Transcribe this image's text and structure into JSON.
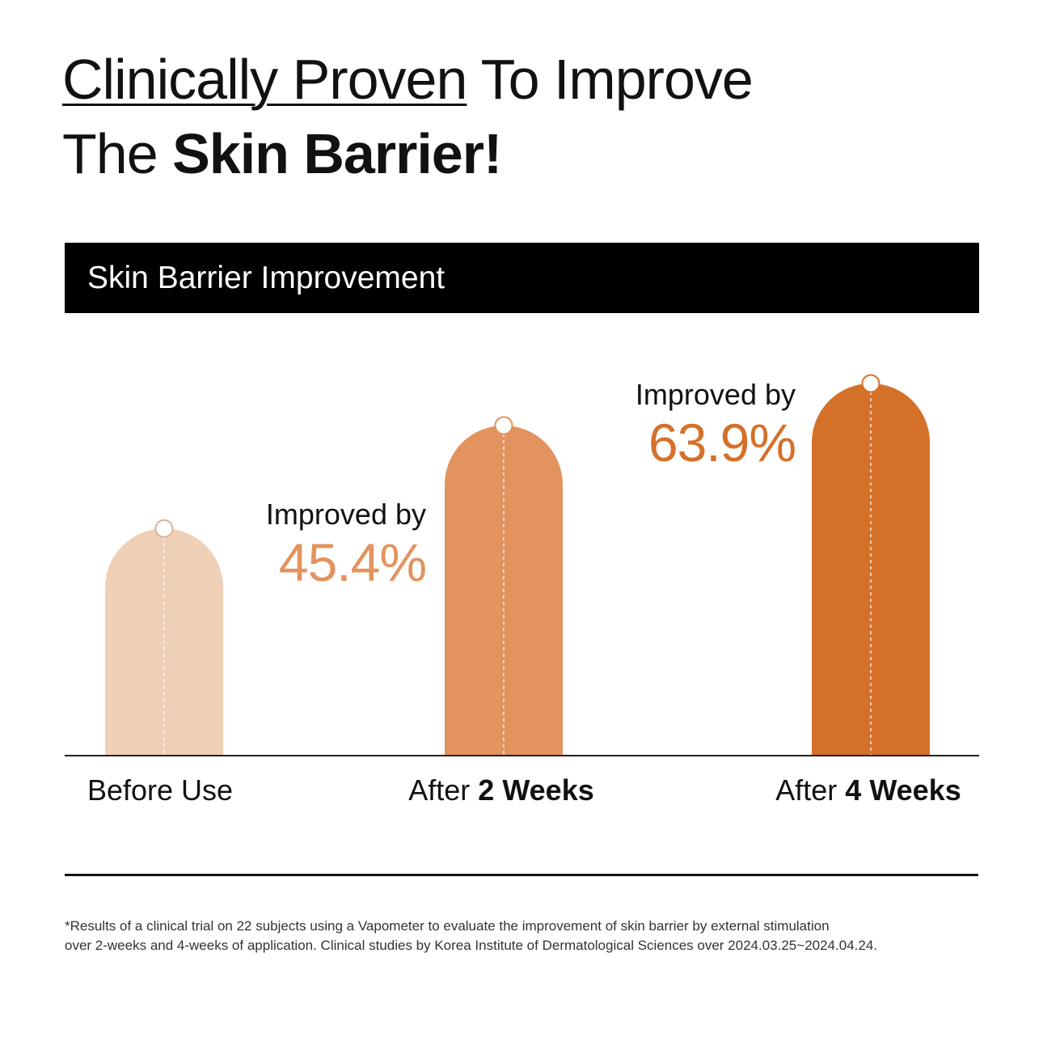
{
  "headline": {
    "line1_underlined": "Clinically Proven",
    "line1_rest": " To Improve",
    "line2_regular": "The ",
    "line2_bold": "Skin Barrier!"
  },
  "section_title": "Skin Barrier Improvement",
  "chart_data": {
    "type": "bar",
    "title": "Skin Barrier Improvement",
    "categories": [
      "Before Use",
      "After 2 Weeks",
      "After 4 Weeks"
    ],
    "category_parts": [
      {
        "regular": "Before Use",
        "bold": ""
      },
      {
        "regular": "After ",
        "bold": "2 Weeks"
      },
      {
        "regular": "After ",
        "bold": "4 Weeks"
      }
    ],
    "values": [
      100,
      145.4,
      163.9
    ],
    "annotations": [
      null,
      {
        "prefix": "Improved by",
        "value": "45.4%"
      },
      {
        "prefix": "Improved by",
        "value": "63.9%"
      }
    ],
    "colors": [
      "#f0cfb7",
      "#e3935e",
      "#d57029"
    ],
    "ylim": [
      0,
      170
    ],
    "grid": false,
    "legend": "none"
  },
  "footnote": {
    "line1": "*Results of a clinical trial on 22 subjects using a Vapometer to evaluate the improvement of skin barrier by external stimulation",
    "line2": "over 2-weeks and 4-weeks of application. Clinical studies by Korea Institute of Dermatological Sciences over 2024.03.25~2024.04.24."
  }
}
